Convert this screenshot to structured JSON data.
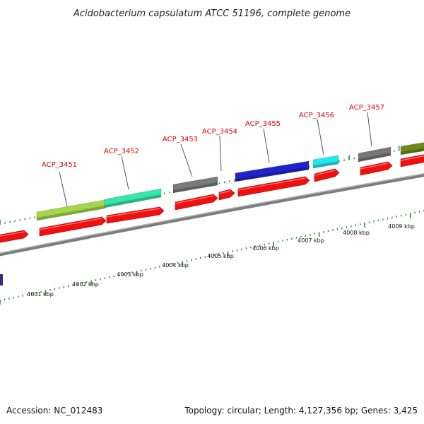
{
  "title": "Acidobacterium capsulatum ATCC 51196, complete genome",
  "accession": "Accession: NC_012483",
  "summary": "Topology: circular; Length: 4,127,356 bp; Genes: 3,425",
  "colors": {
    "gene_label": "#e00000",
    "tick": "#2e8b2e",
    "backbone": "#8c8c8c",
    "cds": "#ee1111"
  },
  "genes": [
    {
      "id": "ACP_3451",
      "label": "ACP_3451",
      "color": "#a4d64a"
    },
    {
      "id": "ACP_3452",
      "label": "ACP_3452",
      "color": "#33e8a8"
    },
    {
      "id": "ACP_3453",
      "label": "ACP_3453",
      "color": "#7a7a7a"
    },
    {
      "id": "ACP_3454",
      "label": "ACP_3454",
      "color": "#ee1111"
    },
    {
      "id": "ACP_3455",
      "label": "ACP_3455",
      "color": "#2222cc"
    },
    {
      "id": "ACP_3456",
      "label": "ACP_3456",
      "color": "#22e6f0"
    },
    {
      "id": "ACP_3457",
      "label": "ACP_3457",
      "color": "#777777"
    }
  ],
  "kbp_labels": [
    "4001 kbp",
    "4002 kbp",
    "4003 kbp",
    "4004 kbp",
    "4005 kbp",
    "4006 kbp",
    "4007 kbp",
    "4008 kbp",
    "4009 kbp"
  ]
}
